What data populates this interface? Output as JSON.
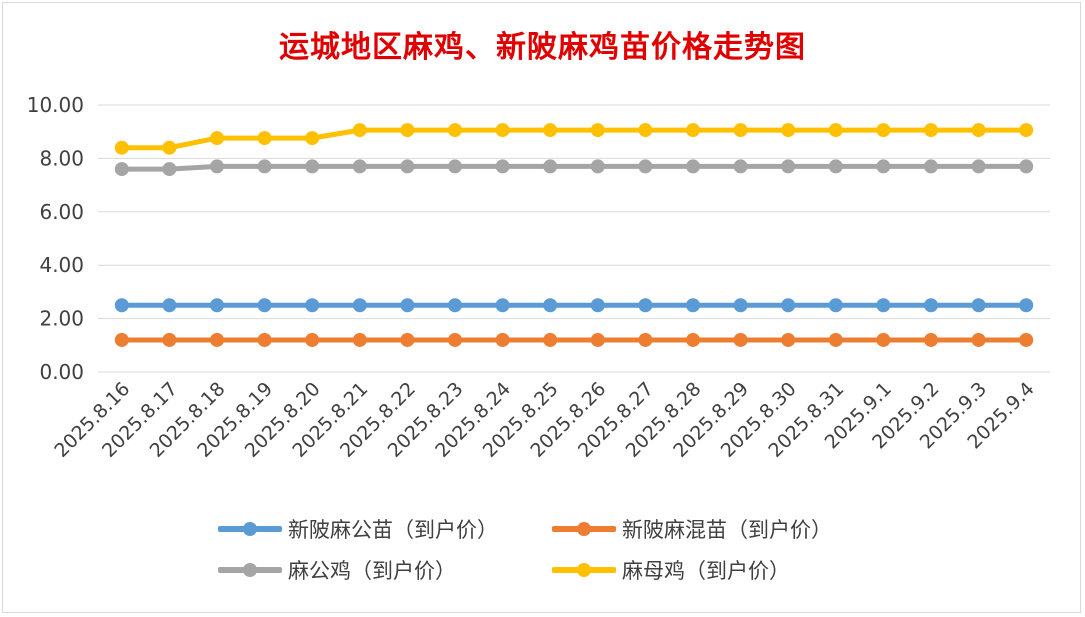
{
  "chart_data": {
    "type": "line",
    "title": "运城地区麻鸡、新陂麻鸡苗价格走势图",
    "xlabel": "",
    "ylabel": "",
    "ylim": [
      0,
      10
    ],
    "yticks": [
      "0.00",
      "2.00",
      "4.00",
      "6.00",
      "8.00",
      "10.00"
    ],
    "grid": true,
    "legend_position": "bottom",
    "categories": [
      "2025.8.16",
      "2025.8.17",
      "2025.8.18",
      "2025.8.19",
      "2025.8.20",
      "2025.8.21",
      "2025.8.22",
      "2025.8.23",
      "2025.8.24",
      "2025.8.25",
      "2025.8.26",
      "2025.8.27",
      "2025.8.28",
      "2025.8.29",
      "2025.8.30",
      "2025.8.31",
      "2025.9.1",
      "2025.9.2",
      "2025.9.3",
      "2025.9.4"
    ],
    "series": [
      {
        "name": "新陂麻公苗（到户价）",
        "color": "#5b9bd5",
        "values": [
          2.5,
          2.5,
          2.5,
          2.5,
          2.5,
          2.5,
          2.5,
          2.5,
          2.5,
          2.5,
          2.5,
          2.5,
          2.5,
          2.5,
          2.5,
          2.5,
          2.5,
          2.5,
          2.5,
          2.5
        ]
      },
      {
        "name": "新陂麻混苗（到户价）",
        "color": "#ed7d31",
        "values": [
          1.2,
          1.2,
          1.2,
          1.2,
          1.2,
          1.2,
          1.2,
          1.2,
          1.2,
          1.2,
          1.2,
          1.2,
          1.2,
          1.2,
          1.2,
          1.2,
          1.2,
          1.2,
          1.2,
          1.2
        ]
      },
      {
        "name": "麻公鸡（到户价）",
        "color": "#a5a5a5",
        "values": [
          7.6,
          7.6,
          7.7,
          7.7,
          7.7,
          7.7,
          7.7,
          7.7,
          7.7,
          7.7,
          7.7,
          7.7,
          7.7,
          7.7,
          7.7,
          7.7,
          7.7,
          7.7,
          7.7,
          7.7
        ]
      },
      {
        "name": "麻母鸡（到户价）",
        "color": "#ffc000",
        "values": [
          8.4,
          8.4,
          8.76,
          8.76,
          8.76,
          9.06,
          9.06,
          9.06,
          9.06,
          9.06,
          9.06,
          9.06,
          9.06,
          9.06,
          9.06,
          9.06,
          9.06,
          9.06,
          9.06,
          9.06
        ]
      }
    ]
  }
}
